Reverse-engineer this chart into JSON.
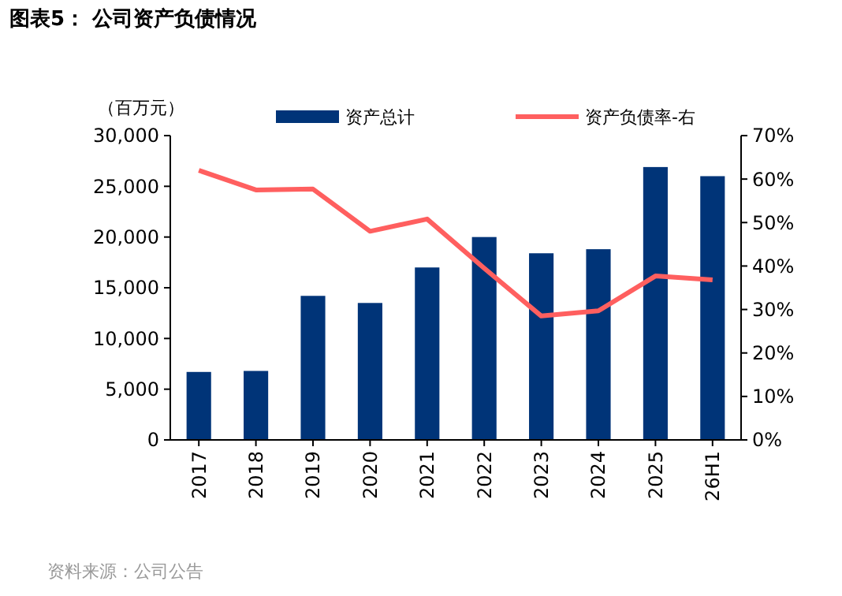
{
  "chart_data": {
    "type": "bar",
    "title": "图表5： 公司资产负债情况",
    "ylabel": "（百万元）",
    "categories": [
      "2017",
      "2018",
      "2019",
      "2020",
      "2021",
      "2022",
      "2023",
      "2024",
      "2025",
      "26H1"
    ],
    "series": [
      {
        "name": "资产总计",
        "color": "#003478",
        "values": [
          6700,
          6800,
          14200,
          13500,
          17000,
          20000,
          18400,
          18800,
          26900,
          26000
        ]
      },
      {
        "name": "资产负债率-右",
        "type": "line",
        "axis": "y2",
        "color": "#ff5f5f",
        "values": [
          62,
          57.5,
          57.7,
          48,
          50.8,
          39.5,
          28.5,
          29.7,
          37.7,
          36.8
        ]
      }
    ],
    "ylim": [
      0,
      30000
    ],
    "yticks": [
      {
        "value": 0,
        "label": "0"
      },
      {
        "value": 5000,
        "label": "5,000"
      },
      {
        "value": 10000,
        "label": "10,000"
      },
      {
        "value": 15000,
        "label": "15,000"
      },
      {
        "value": 20000,
        "label": "20,000"
      },
      {
        "value": 25000,
        "label": "25,000"
      },
      {
        "value": 30000,
        "label": "30,000"
      }
    ],
    "y2lim": [
      0,
      70
    ],
    "y2ticks": [
      {
        "value": 0,
        "label": "0%"
      },
      {
        "value": 10,
        "label": "10%"
      },
      {
        "value": 20,
        "label": "20%"
      },
      {
        "value": 30,
        "label": "30%"
      },
      {
        "value": 40,
        "label": "40%"
      },
      {
        "value": 50,
        "label": "50%"
      },
      {
        "value": 60,
        "label": "60%"
      },
      {
        "value": 70,
        "label": "70%"
      }
    ],
    "legend": "top",
    "grid": false,
    "marker": "none",
    "line_style": "solid",
    "annotations": [
      "资料来源：公司公告"
    ]
  }
}
